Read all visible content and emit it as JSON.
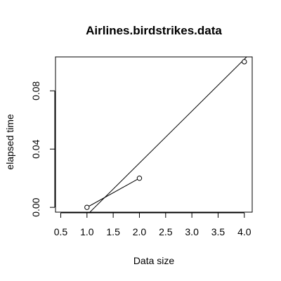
{
  "chart_data": {
    "type": "line",
    "title": "Airlines.birdstrikes.data",
    "xlabel": "Data size",
    "ylabel": "elapsed time",
    "xlim": [
      0.4,
      4.15
    ],
    "ylim": [
      -0.0033,
      0.1033
    ],
    "x_ticks": [
      0.5,
      1.0,
      1.5,
      2.0,
      2.5,
      3.0,
      3.5,
      4.0
    ],
    "x_tick_labels": [
      "0.5",
      "1.0",
      "1.5",
      "2.0",
      "2.5",
      "3.0",
      "3.5",
      "4.0"
    ],
    "y_ticks": [
      0.0,
      0.04,
      0.08
    ],
    "y_tick_labels": [
      "0.00",
      "0.04",
      "0.08"
    ],
    "grid": false,
    "series": [
      {
        "kind": "scatter",
        "marker": "open-circle",
        "x": [
          1.0,
          2.0,
          4.0
        ],
        "y": [
          0.0,
          0.02,
          0.1
        ]
      },
      {
        "kind": "line",
        "x": [
          1.0,
          2.0
        ],
        "y": [
          0.0,
          0.02
        ]
      },
      {
        "kind": "fit-line",
        "x": [
          1.05,
          4.05
        ],
        "y": [
          -0.0035,
          0.1035
        ]
      }
    ],
    "colors": {
      "foreground": "#000000",
      "background": "#ffffff"
    }
  }
}
